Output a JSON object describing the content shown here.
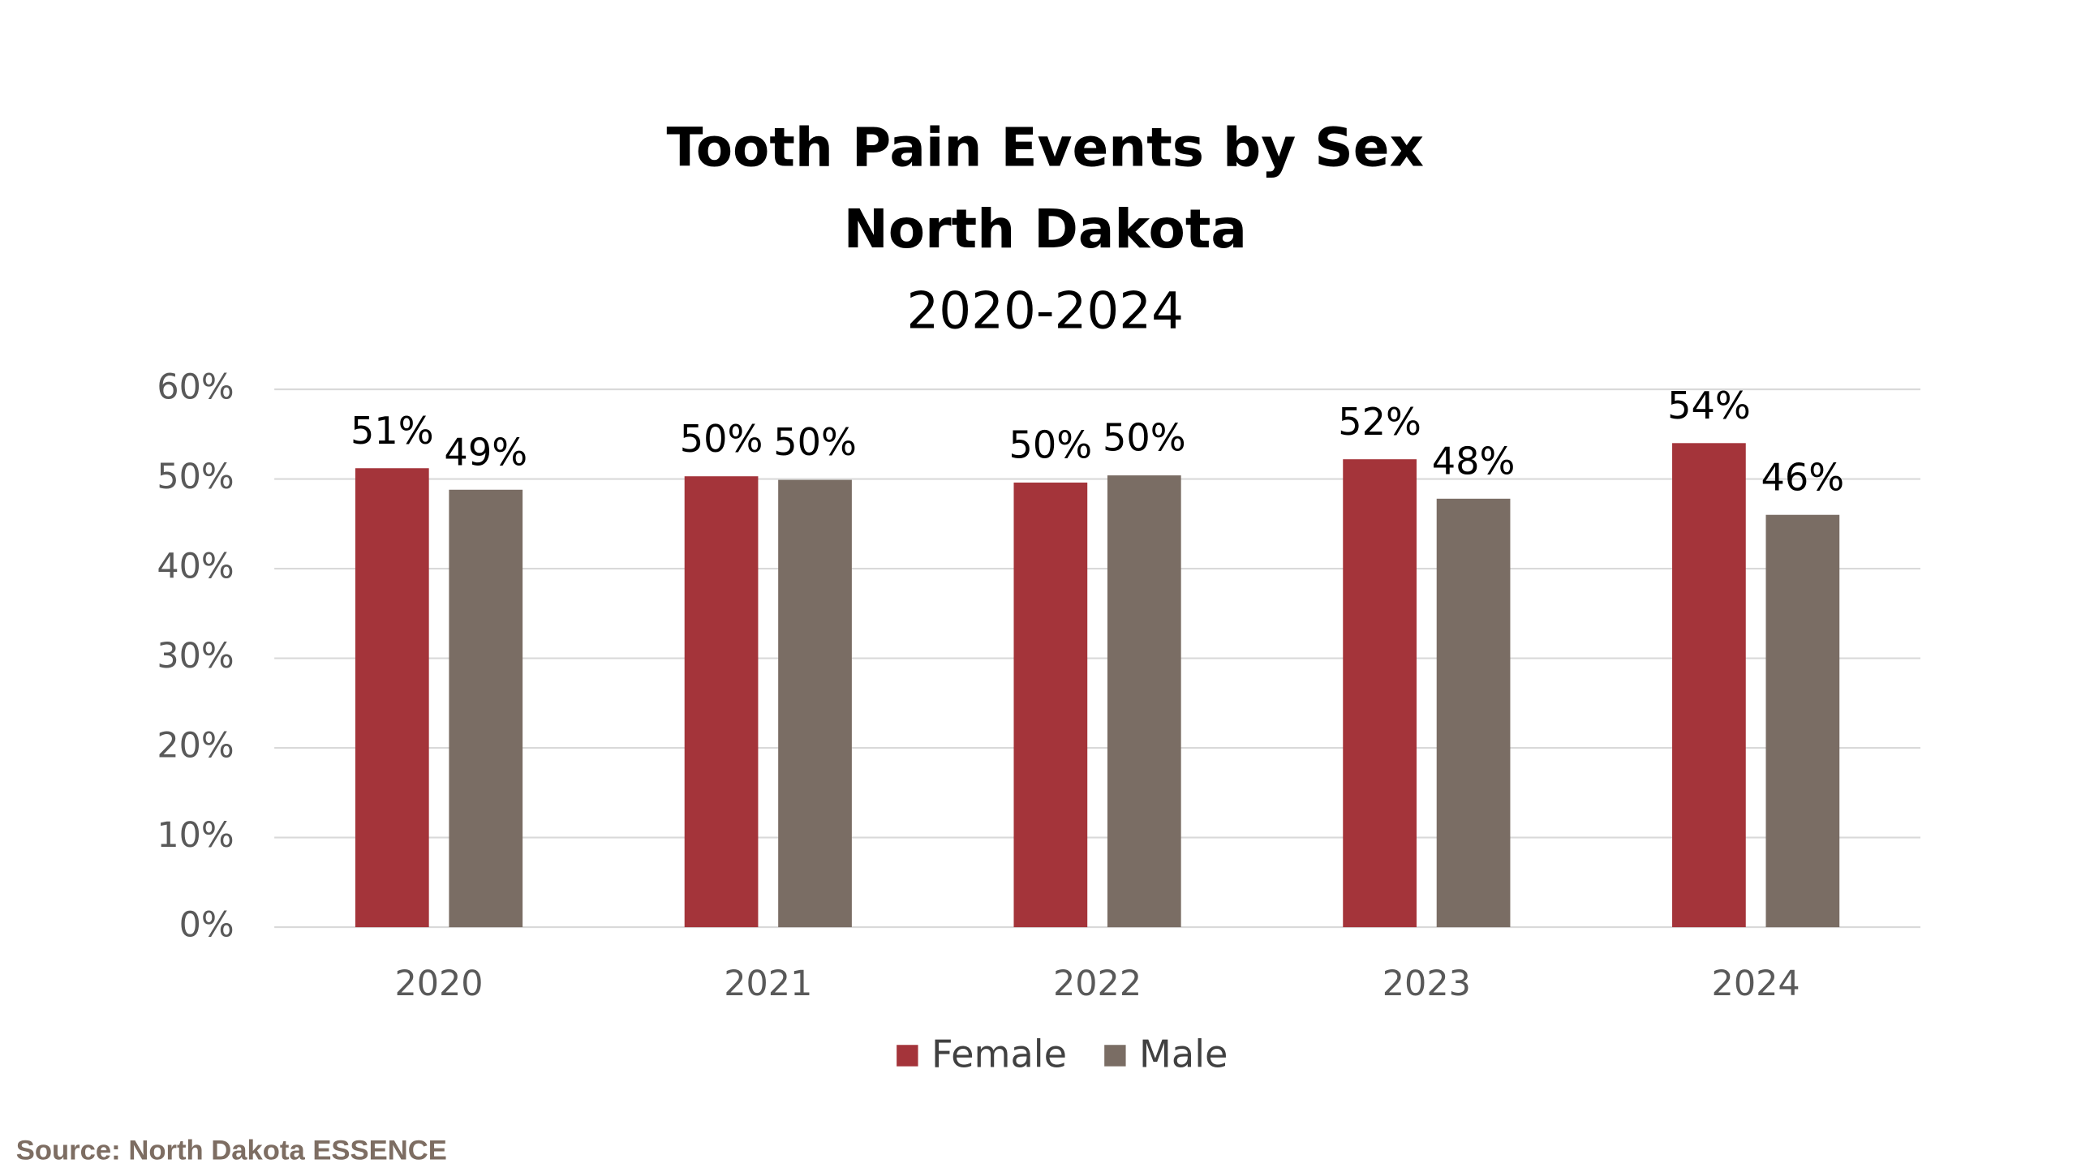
{
  "chart_data": {
    "type": "bar",
    "title": "Tooth Pain Events by Sex",
    "title_line2": "North Dakota",
    "subtitle": "2020-2024",
    "categories": [
      "2020",
      "2021",
      "2022",
      "2023",
      "2024"
    ],
    "series": [
      {
        "name": "Female",
        "color": "#a4343a",
        "values": [
          51.2,
          50.3,
          49.6,
          52.2,
          54.0
        ],
        "value_labels": [
          "51%",
          "50%",
          "50%",
          "52%",
          "54%"
        ]
      },
      {
        "name": "Male",
        "color": "#7a6d64",
        "values": [
          48.8,
          49.9,
          50.4,
          47.8,
          46.0
        ],
        "value_labels": [
          "49%",
          "50%",
          "50%",
          "48%",
          "46%"
        ]
      }
    ],
    "ylim": [
      0,
      60
    ],
    "yticks": [
      {
        "value": 0,
        "label": "0%"
      },
      {
        "value": 10,
        "label": "10%"
      },
      {
        "value": 20,
        "label": "20%"
      },
      {
        "value": 30,
        "label": "30%"
      },
      {
        "value": 40,
        "label": "40%"
      },
      {
        "value": 50,
        "label": "50%"
      },
      {
        "value": 60,
        "label": "60%"
      }
    ],
    "grid": true,
    "legend": "bottom",
    "source": "Source: North Dakota ESSENCE"
  }
}
